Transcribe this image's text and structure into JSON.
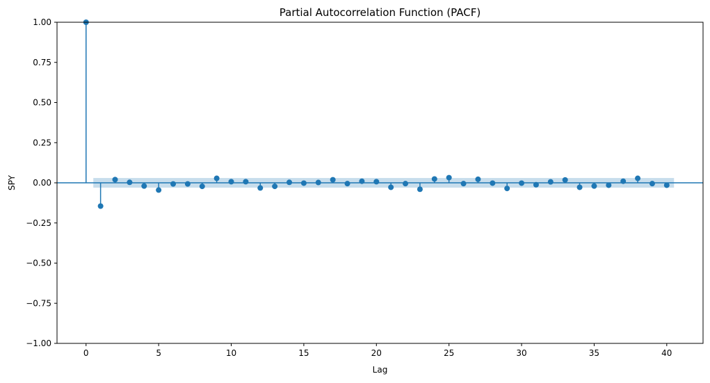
{
  "chart_data": {
    "type": "stem",
    "title": "Partial Autocorrelation Function (PACF)",
    "xlabel": "Lag",
    "ylabel": "SPY",
    "xlim": [
      -2,
      42.5
    ],
    "ylim": [
      -1.0,
      1.0
    ],
    "xticks": [
      0,
      5,
      10,
      15,
      20,
      25,
      30,
      35,
      40
    ],
    "xtick_labels": [
      "0",
      "5",
      "10",
      "15",
      "20",
      "25",
      "30",
      "35",
      "40"
    ],
    "yticks": [
      -1.0,
      -0.75,
      -0.5,
      -0.25,
      0.0,
      0.25,
      0.5,
      0.75,
      1.0
    ],
    "ytick_labels": [
      "−1.00",
      "−0.75",
      "−0.50",
      "−0.25",
      "0.00",
      "0.25",
      "0.50",
      "0.75",
      "1.00"
    ],
    "grid": false,
    "series_color": "#1f77b4",
    "confidence_band": {
      "x_range": [
        0.5,
        40.5
      ],
      "half_width": 0.03,
      "color": "#1f77b4",
      "opacity": 0.25
    },
    "lags": [
      0,
      1,
      2,
      3,
      4,
      5,
      6,
      7,
      8,
      9,
      10,
      11,
      12,
      13,
      14,
      15,
      16,
      17,
      18,
      19,
      20,
      21,
      22,
      23,
      24,
      25,
      26,
      27,
      28,
      29,
      30,
      31,
      32,
      33,
      34,
      35,
      36,
      37,
      38,
      39,
      40
    ],
    "values": [
      1.0,
      -0.145,
      0.02,
      0.003,
      -0.02,
      -0.045,
      -0.007,
      -0.007,
      -0.022,
      0.028,
      0.007,
      0.007,
      -0.032,
      -0.022,
      0.003,
      -0.002,
      0.002,
      0.019,
      -0.005,
      0.01,
      0.007,
      -0.028,
      -0.005,
      -0.04,
      0.024,
      0.032,
      -0.005,
      0.022,
      -0.002,
      -0.035,
      -0.002,
      -0.012,
      0.006,
      0.018,
      -0.028,
      -0.02,
      -0.015,
      0.01,
      0.028,
      -0.005,
      -0.015
    ]
  }
}
